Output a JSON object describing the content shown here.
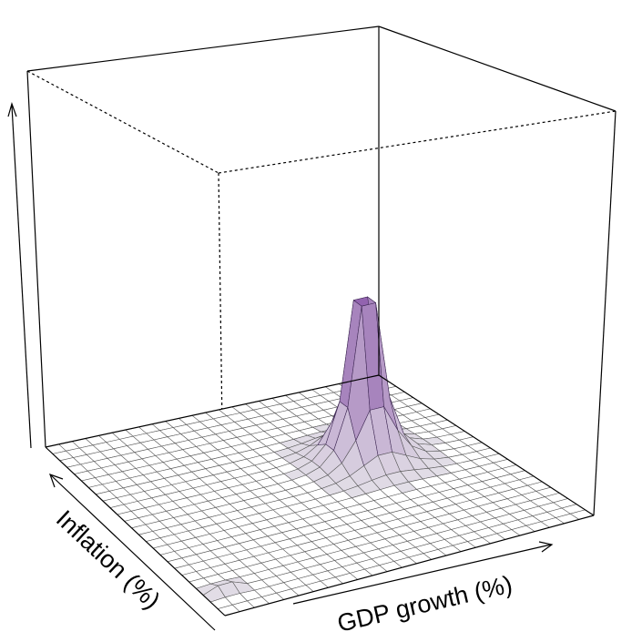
{
  "chart_data": {
    "type": "surface3d",
    "title": "",
    "xlabel": "GDP growth (%)",
    "ylabel": "Inflation (%)",
    "zlabel": "",
    "grid_resolution": [
      25,
      25
    ],
    "peaks": [
      {
        "x_index": 17.5,
        "y_index": 14.5,
        "height": 1.0,
        "spread": 0.9,
        "role": "main-peak"
      },
      {
        "x_index": 1.5,
        "y_index": 3.0,
        "height": 0.07,
        "spread": 0.35,
        "role": "minor-peak"
      }
    ],
    "low_color": "#ffffff",
    "high_color": "#7b3f9e",
    "grid_color": "#555555",
    "box_line_color": "#000000"
  }
}
